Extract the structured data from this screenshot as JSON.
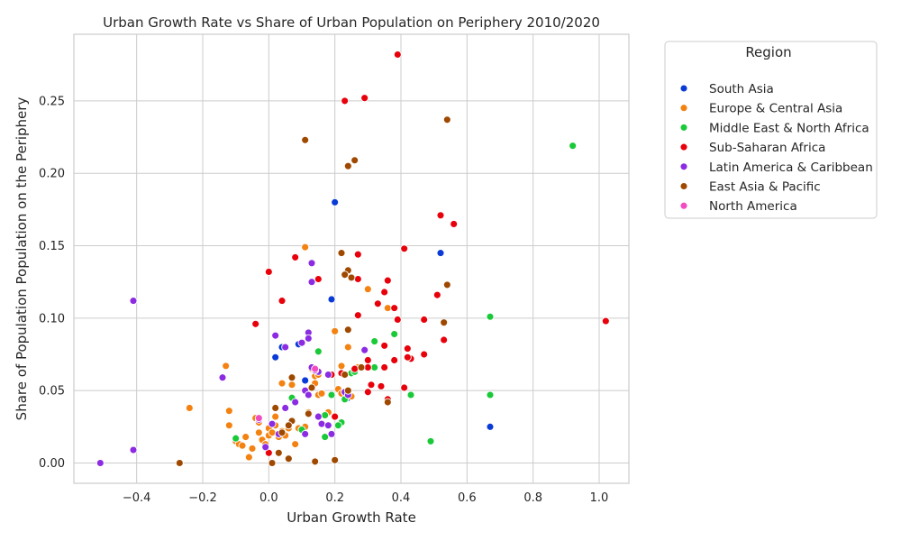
{
  "chart_data": {
    "type": "scatter",
    "title": "Urban Growth Rate vs Share of Urban Population on Periphery 2010/2020",
    "xlabel": "Urban Growth Rate",
    "ylabel": "Share of Population Population on the Periphery",
    "xlim": [
      -0.59,
      1.09
    ],
    "ylim": [
      -0.014,
      0.296
    ],
    "xticks": [
      -0.4,
      -0.2,
      0.0,
      0.2,
      0.4,
      0.6,
      0.8,
      1.0
    ],
    "xtick_labels": [
      "−0.4",
      "−0.2",
      "0.0",
      "0.2",
      "0.4",
      "0.6",
      "0.8",
      "1.0"
    ],
    "yticks": [
      0.0,
      0.05,
      0.1,
      0.15,
      0.2,
      0.25
    ],
    "ytick_labels": [
      "0.00",
      "0.05",
      "0.10",
      "0.15",
      "0.20",
      "0.25"
    ],
    "grid": true,
    "legend": {
      "title": "Region",
      "placement": "outside-right"
    },
    "series": [
      {
        "name": "South Asia",
        "color": "#0a3bd6",
        "points": [
          [
            0.2,
            0.18
          ],
          [
            0.19,
            0.113
          ],
          [
            0.52,
            0.145
          ],
          [
            0.67,
            0.025
          ],
          [
            0.04,
            0.08
          ],
          [
            0.02,
            0.073
          ],
          [
            0.09,
            0.082
          ],
          [
            0.11,
            0.057
          ],
          [
            0.24,
            0.045
          ]
        ]
      },
      {
        "name": "Europe & Central Asia",
        "color": "#f38211",
        "points": [
          [
            0.11,
            0.149
          ],
          [
            -0.13,
            0.067
          ],
          [
            -0.24,
            0.038
          ],
          [
            -0.12,
            0.036
          ],
          [
            -0.12,
            0.026
          ],
          [
            -0.1,
            0.015
          ],
          [
            -0.09,
            0.013
          ],
          [
            -0.08,
            0.012
          ],
          [
            -0.07,
            0.018
          ],
          [
            -0.06,
            0.004
          ],
          [
            -0.05,
            0.01
          ],
          [
            -0.04,
            0.031
          ],
          [
            -0.03,
            0.028
          ],
          [
            -0.03,
            0.021
          ],
          [
            -0.02,
            0.016
          ],
          [
            -0.01,
            0.013
          ],
          [
            0.0,
            0.019
          ],
          [
            0.0,
            0.024
          ],
          [
            0.01,
            0.021
          ],
          [
            0.02,
            0.026
          ],
          [
            0.02,
            0.032
          ],
          [
            0.03,
            0.018
          ],
          [
            0.04,
            0.022
          ],
          [
            0.04,
            0.055
          ],
          [
            0.05,
            0.019
          ],
          [
            0.06,
            0.024
          ],
          [
            0.07,
            0.054
          ],
          [
            0.08,
            0.013
          ],
          [
            0.09,
            0.024
          ],
          [
            0.1,
            0.023
          ],
          [
            0.11,
            0.025
          ],
          [
            0.12,
            0.035
          ],
          [
            0.13,
            0.065
          ],
          [
            0.14,
            0.06
          ],
          [
            0.14,
            0.055
          ],
          [
            0.15,
            0.061
          ],
          [
            0.15,
            0.047
          ],
          [
            0.16,
            0.048
          ],
          [
            0.18,
            0.035
          ],
          [
            0.2,
            0.091
          ],
          [
            0.21,
            0.051
          ],
          [
            0.22,
            0.067
          ],
          [
            0.22,
            0.048
          ],
          [
            0.24,
            0.08
          ],
          [
            0.25,
            0.046
          ],
          [
            0.27,
            0.066
          ],
          [
            0.3,
            0.12
          ],
          [
            0.36,
            0.107
          ]
        ]
      },
      {
        "name": "Middle East & North Africa",
        "color": "#1ac938",
        "points": [
          [
            0.92,
            0.219
          ],
          [
            0.67,
            0.101
          ],
          [
            0.67,
            0.047
          ],
          [
            0.49,
            0.015
          ],
          [
            0.43,
            0.047
          ],
          [
            0.38,
            0.089
          ],
          [
            0.32,
            0.084
          ],
          [
            0.32,
            0.066
          ],
          [
            0.25,
            0.062
          ],
          [
            0.26,
            0.063
          ],
          [
            0.23,
            0.044
          ],
          [
            0.22,
            0.028
          ],
          [
            0.21,
            0.026
          ],
          [
            0.19,
            0.047
          ],
          [
            0.17,
            0.033
          ],
          [
            0.17,
            0.018
          ],
          [
            0.15,
            0.077
          ],
          [
            0.07,
            0.045
          ],
          [
            -0.1,
            0.017
          ],
          [
            0.1,
            0.023
          ]
        ]
      },
      {
        "name": "Sub-Saharan Africa",
        "color": "#e8000b",
        "points": [
          [
            0.39,
            0.282
          ],
          [
            0.23,
            0.25
          ],
          [
            0.29,
            0.252
          ],
          [
            0.52,
            0.171
          ],
          [
            0.56,
            0.165
          ],
          [
            0.41,
            0.148
          ],
          [
            0.27,
            0.144
          ],
          [
            0.0,
            0.132
          ],
          [
            0.08,
            0.142
          ],
          [
            0.15,
            0.127
          ],
          [
            0.27,
            0.127
          ],
          [
            0.36,
            0.126
          ],
          [
            0.35,
            0.118
          ],
          [
            0.51,
            0.116
          ],
          [
            0.04,
            0.112
          ],
          [
            0.33,
            0.11
          ],
          [
            0.38,
            0.107
          ],
          [
            0.27,
            0.102
          ],
          [
            0.39,
            0.099
          ],
          [
            0.47,
            0.099
          ],
          [
            1.02,
            0.098
          ],
          [
            -0.04,
            0.096
          ],
          [
            0.53,
            0.085
          ],
          [
            0.35,
            0.081
          ],
          [
            0.42,
            0.079
          ],
          [
            0.43,
            0.072
          ],
          [
            0.47,
            0.075
          ],
          [
            0.38,
            0.071
          ],
          [
            0.42,
            0.073
          ],
          [
            0.3,
            0.071
          ],
          [
            0.3,
            0.066
          ],
          [
            0.35,
            0.066
          ],
          [
            0.26,
            0.065
          ],
          [
            0.22,
            0.062
          ],
          [
            0.19,
            0.061
          ],
          [
            0.31,
            0.054
          ],
          [
            0.34,
            0.053
          ],
          [
            0.41,
            0.052
          ],
          [
            0.3,
            0.049
          ],
          [
            0.36,
            0.044
          ],
          [
            0.23,
            0.049
          ],
          [
            0.2,
            0.032
          ],
          [
            0.0,
            0.007
          ]
        ]
      },
      {
        "name": "Latin America & Caribbean",
        "color": "#8b2be2",
        "points": [
          [
            -0.41,
            0.112
          ],
          [
            -0.51,
            0.0
          ],
          [
            -0.41,
            0.009
          ],
          [
            -0.14,
            0.059
          ],
          [
            0.13,
            0.138
          ],
          [
            0.13,
            0.125
          ],
          [
            0.12,
            0.09
          ],
          [
            0.12,
            0.086
          ],
          [
            0.02,
            0.088
          ],
          [
            0.1,
            0.083
          ],
          [
            0.05,
            0.08
          ],
          [
            0.29,
            0.078
          ],
          [
            0.18,
            0.061
          ],
          [
            0.15,
            0.063
          ],
          [
            0.14,
            0.064
          ],
          [
            0.13,
            0.066
          ],
          [
            0.11,
            0.05
          ],
          [
            0.12,
            0.047
          ],
          [
            0.08,
            0.042
          ],
          [
            0.05,
            0.038
          ],
          [
            0.12,
            0.034
          ],
          [
            0.15,
            0.032
          ],
          [
            0.16,
            0.027
          ],
          [
            0.18,
            0.026
          ],
          [
            0.01,
            0.027
          ],
          [
            -0.03,
            0.03
          ],
          [
            0.03,
            0.02
          ],
          [
            -0.01,
            0.011
          ],
          [
            0.11,
            0.02
          ],
          [
            0.19,
            0.02
          ],
          [
            0.23,
            0.049
          ],
          [
            0.24,
            0.047
          ]
        ]
      },
      {
        "name": "East Asia & Pacific",
        "color": "#9f4800",
        "points": [
          [
            0.11,
            0.223
          ],
          [
            0.54,
            0.237
          ],
          [
            0.26,
            0.209
          ],
          [
            0.24,
            0.205
          ],
          [
            0.22,
            0.145
          ],
          [
            0.24,
            0.133
          ],
          [
            0.25,
            0.128
          ],
          [
            0.23,
            0.13
          ],
          [
            0.54,
            0.123
          ],
          [
            0.53,
            0.097
          ],
          [
            0.24,
            0.092
          ],
          [
            0.28,
            0.066
          ],
          [
            0.23,
            0.061
          ],
          [
            0.07,
            0.059
          ],
          [
            0.13,
            0.052
          ],
          [
            0.24,
            0.05
          ],
          [
            0.36,
            0.042
          ],
          [
            0.02,
            0.038
          ],
          [
            0.12,
            0.034
          ],
          [
            0.07,
            0.029
          ],
          [
            0.06,
            0.026
          ],
          [
            0.04,
            0.021
          ],
          [
            0.03,
            0.007
          ],
          [
            0.06,
            0.003
          ],
          [
            0.14,
            0.001
          ],
          [
            0.2,
            0.002
          ],
          [
            0.01,
            0.0
          ],
          [
            -0.27,
            0.0
          ]
        ]
      },
      {
        "name": "North America",
        "color": "#f14cc1",
        "points": [
          [
            0.14,
            0.065
          ],
          [
            -0.03,
            0.031
          ]
        ]
      }
    ]
  }
}
